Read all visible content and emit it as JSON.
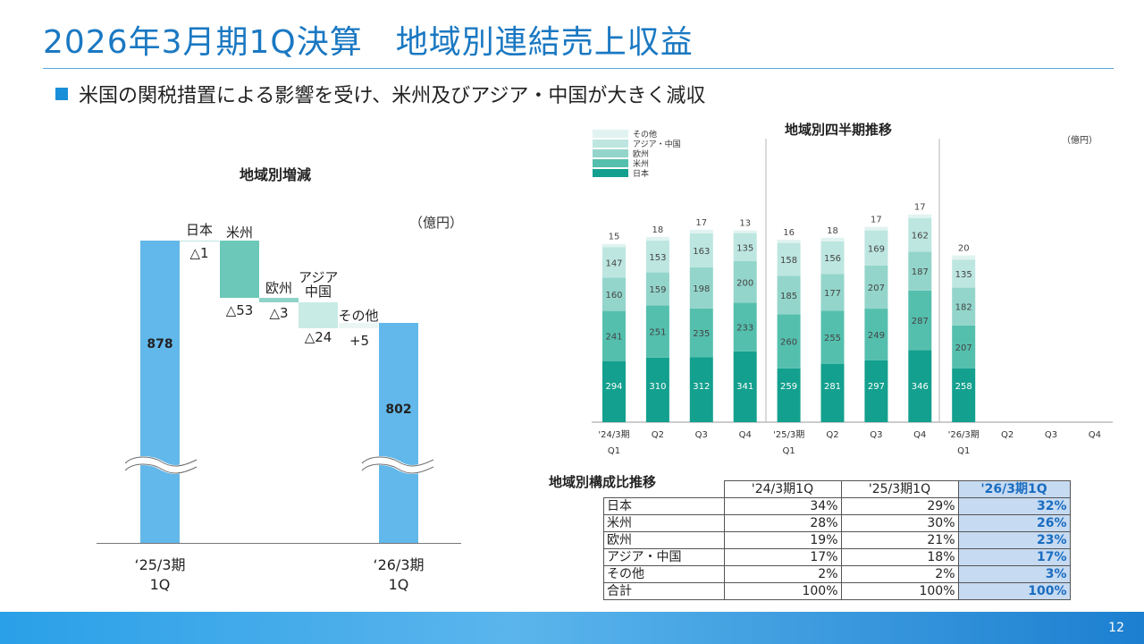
{
  "title": "2026年3月期1Q決算　地域別連結売上収益",
  "bullet": "米国の関税措置による影響を受け、米州及びアジア・中国が大きく減収",
  "page_number": "12",
  "waterfall": {
    "title": "地域別増減",
    "unit": "（億円）",
    "start_value": "878",
    "end_value": "802",
    "start_label_line1": "‘25/3期",
    "start_label_line2": "1Q",
    "end_label_line1": "‘26/3期",
    "end_label_line2": "1Q",
    "steps": [
      {
        "name": "日本",
        "delta": "△1"
      },
      {
        "name": "米州",
        "delta": "△53"
      },
      {
        "name": "欧州",
        "delta": "△3"
      },
      {
        "name": "アジア\n中国",
        "name_line1": "アジア",
        "name_line2": "中国",
        "delta": "△24"
      },
      {
        "name": "その他",
        "delta": "+5"
      }
    ]
  },
  "quarterly": {
    "title": "地域別四半期推移",
    "unit": "（億円）",
    "legend": [
      "その他",
      "アジア・中国",
      "欧州",
      "米州",
      "日本"
    ],
    "x_labels_line1": [
      "'24/3期",
      "Q2",
      "Q3",
      "Q4",
      "'25/3期",
      "Q2",
      "Q3",
      "Q4",
      "'26/3期",
      "Q2",
      "Q3",
      "Q4"
    ],
    "x_labels_line2": [
      "Q1",
      "",
      "",
      "",
      "Q1",
      "",
      "",
      "",
      "Q1",
      "",
      "",
      ""
    ]
  },
  "chart_data": [
    {
      "type": "bar",
      "title": "地域別増減",
      "categories": [
        "‘25/3期 1Q",
        "日本",
        "米州",
        "欧州",
        "アジア 中国",
        "その他",
        "‘26/3期 1Q"
      ],
      "values": [
        878,
        -1,
        -53,
        -3,
        -24,
        5,
        802
      ],
      "ylabel": "（億円）"
    },
    {
      "type": "bar",
      "title": "地域別四半期推移",
      "categories": [
        "'24/3期 Q1",
        "Q2",
        "Q3",
        "Q4",
        "'25/3期 Q1",
        "Q2",
        "Q3",
        "Q4",
        "'26/3期 Q1",
        "Q2",
        "Q3",
        "Q4"
      ],
      "series": [
        {
          "name": "日本",
          "values": [
            294,
            310,
            312,
            341,
            259,
            281,
            297,
            346,
            258,
            null,
            null,
            null
          ]
        },
        {
          "name": "米州",
          "values": [
            241,
            251,
            235,
            233,
            260,
            255,
            249,
            287,
            207,
            null,
            null,
            null
          ]
        },
        {
          "name": "欧州",
          "values": [
            160,
            159,
            198,
            200,
            185,
            177,
            207,
            187,
            182,
            null,
            null,
            null
          ]
        },
        {
          "name": "アジア・中国",
          "values": [
            147,
            153,
            163,
            135,
            158,
            156,
            169,
            162,
            135,
            null,
            null,
            null
          ]
        },
        {
          "name": "その他",
          "values": [
            15,
            18,
            17,
            13,
            16,
            18,
            17,
            17,
            20,
            null,
            null,
            null
          ]
        }
      ],
      "ylabel": "（億円）"
    }
  ],
  "composition": {
    "title": "地域別構成比推移",
    "headers": [
      "'24/3期1Q",
      "'25/3期1Q",
      "'26/3期1Q"
    ],
    "rows": [
      {
        "name": "日本",
        "v1": "34%",
        "v2": "29%",
        "v3": "32%"
      },
      {
        "name": "米州",
        "v1": "28%",
        "v2": "30%",
        "v3": "26%"
      },
      {
        "name": "欧州",
        "v1": "19%",
        "v2": "21%",
        "v3": "23%"
      },
      {
        "name": "アジア・中国",
        "v1": "17%",
        "v2": "18%",
        "v3": "17%"
      },
      {
        "name": "その他",
        "v1": "2%",
        "v2": "2%",
        "v3": "3%"
      },
      {
        "name": "合計",
        "v1": "100%",
        "v2": "100%",
        "v3": "100%"
      }
    ]
  },
  "colors": {
    "title": "#1a78c2",
    "waterfall_total": "#62b8ea",
    "waterfall_americas": "#6cc8b8",
    "waterfall_europe": "#8fd3c8",
    "waterfall_asia": "#c9ebe5",
    "japan": "#14a08e",
    "americas": "#55bfae",
    "europe": "#93d5cb",
    "asia_china": "#bde6e0",
    "other": "#e0f3f0",
    "highlight": "#c6daf1"
  }
}
